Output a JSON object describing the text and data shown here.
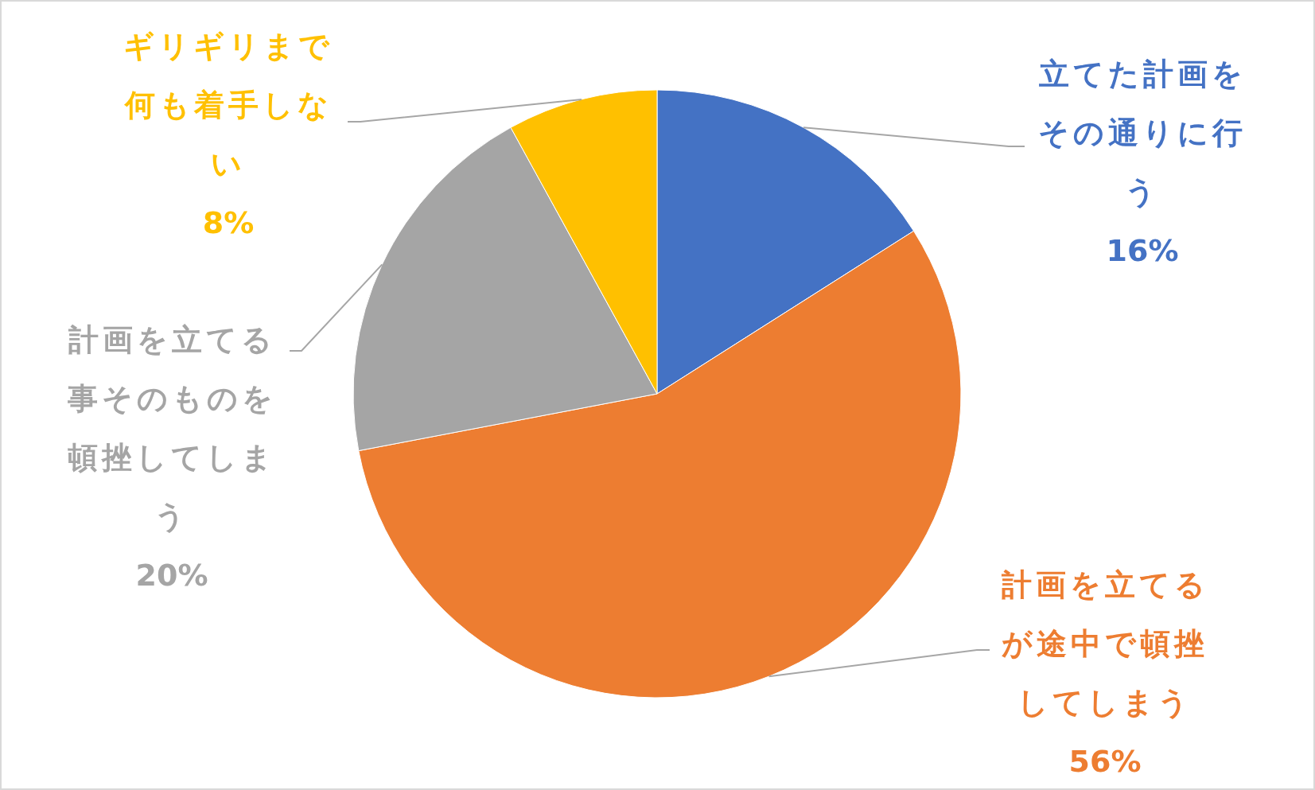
{
  "chart_data": {
    "type": "pie",
    "categories": [
      "立てた計画をその通りに行う",
      "計画を立てるが途中で頓挫してしまう",
      "計画を立てる事そのものを頓挫してしまう",
      "ギリギリまで何も着手しない"
    ],
    "values": [
      16,
      56,
      20,
      8
    ],
    "colors": [
      "#4472c4",
      "#ed7d31",
      "#a5a5a5",
      "#ffc000"
    ],
    "value_labels": [
      "16%",
      "56%",
      "20%",
      "8%"
    ]
  }
}
